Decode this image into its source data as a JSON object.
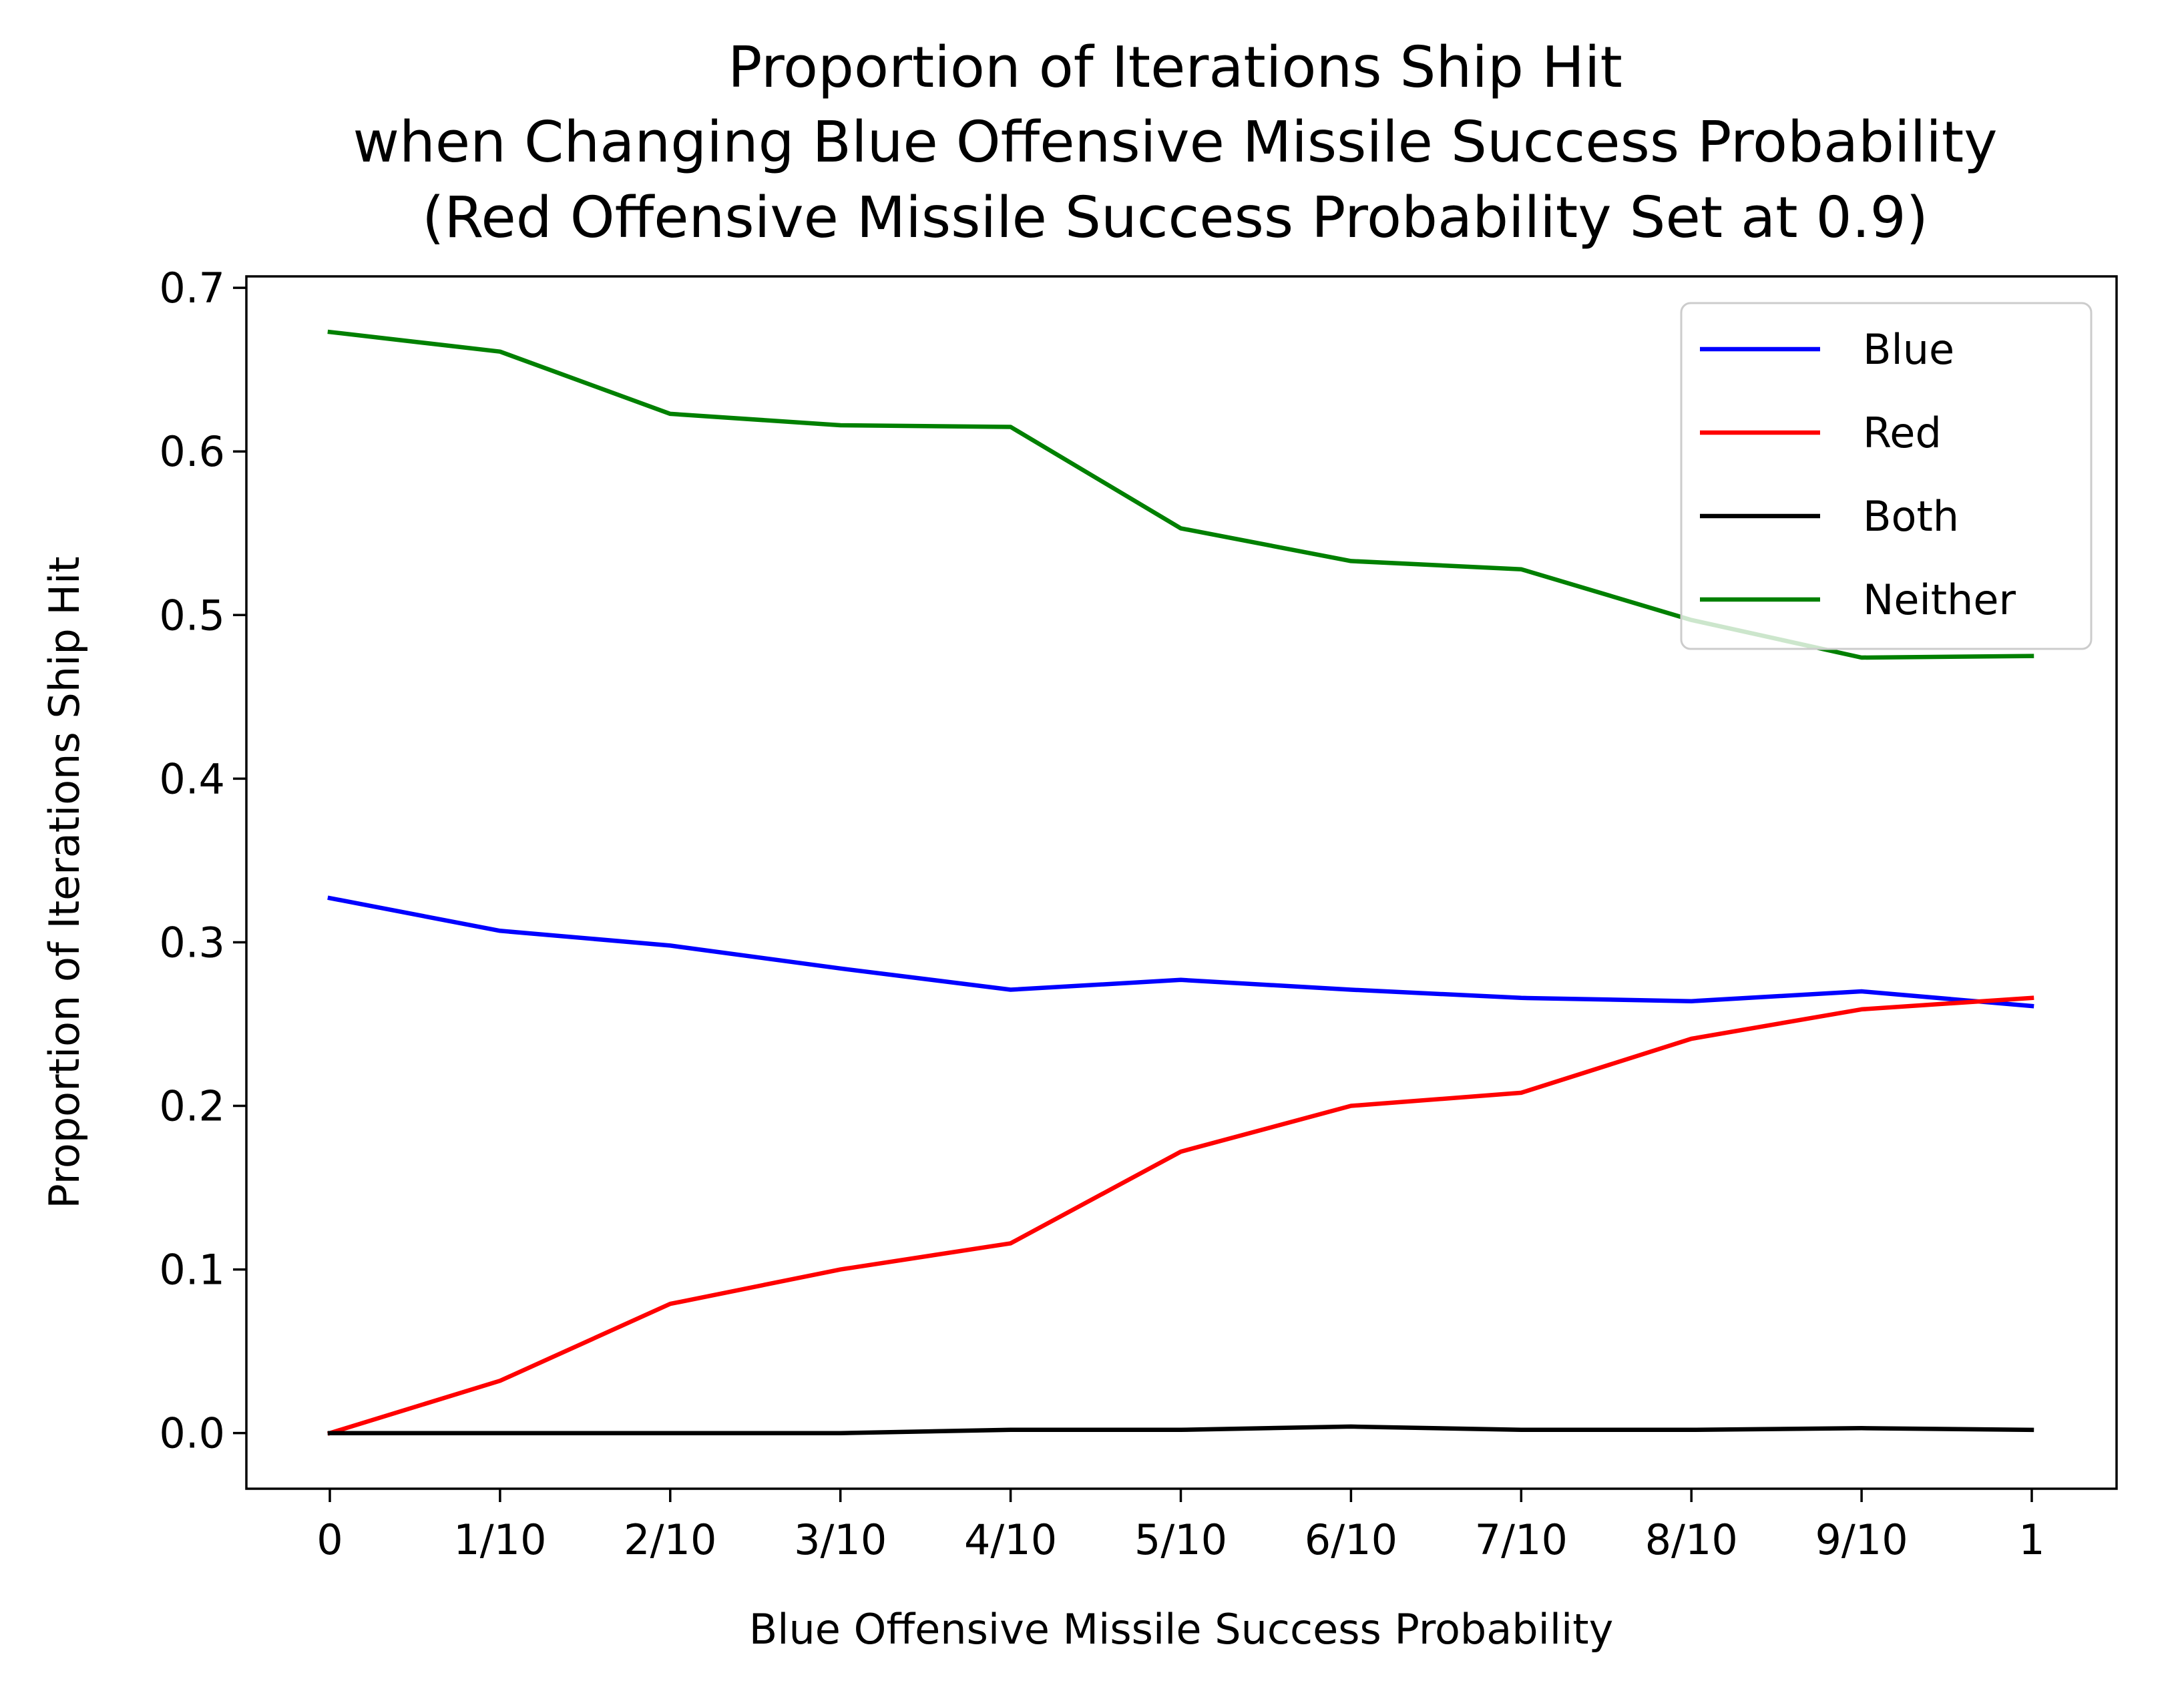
{
  "chart_data": {
    "type": "line",
    "title_lines": [
      "Proportion of Iterations Ship Hit",
      "when Changing Blue Offensive Missile Success Probability",
      "(Red Offensive Missile Success Probability Set at 0.9)"
    ],
    "xlabel": "Blue Offensive Missile Success Probability",
    "ylabel": "Proportion of Iterations Ship Hit",
    "categories": [
      "0",
      "1/10",
      "2/10",
      "3/10",
      "4/10",
      "5/10",
      "6/10",
      "7/10",
      "8/10",
      "9/10",
      "1"
    ],
    "yticks": [
      "0.0",
      "0.1",
      "0.2",
      "0.3",
      "0.4",
      "0.5",
      "0.6",
      "0.7"
    ],
    "ylim": [
      -0.034,
      0.707
    ],
    "grid": false,
    "legend_position": "top-right",
    "series": [
      {
        "name": "Blue",
        "color": "#0000ff",
        "values": [
          0.327,
          0.307,
          0.298,
          0.284,
          0.271,
          0.277,
          0.271,
          0.266,
          0.264,
          0.27,
          0.261
        ]
      },
      {
        "name": "Red",
        "color": "#ff0000",
        "values": [
          0.0,
          0.032,
          0.079,
          0.1,
          0.116,
          0.172,
          0.2,
          0.208,
          0.241,
          0.259,
          0.266
        ]
      },
      {
        "name": "Both",
        "color": "#000000",
        "values": [
          0.0,
          0.0,
          0.0,
          0.0,
          0.002,
          0.002,
          0.004,
          0.002,
          0.002,
          0.003,
          0.002
        ]
      },
      {
        "name": "Neither",
        "color": "#008000",
        "values": [
          0.673,
          0.661,
          0.623,
          0.616,
          0.615,
          0.553,
          0.533,
          0.528,
          0.497,
          0.474,
          0.475
        ]
      }
    ]
  }
}
